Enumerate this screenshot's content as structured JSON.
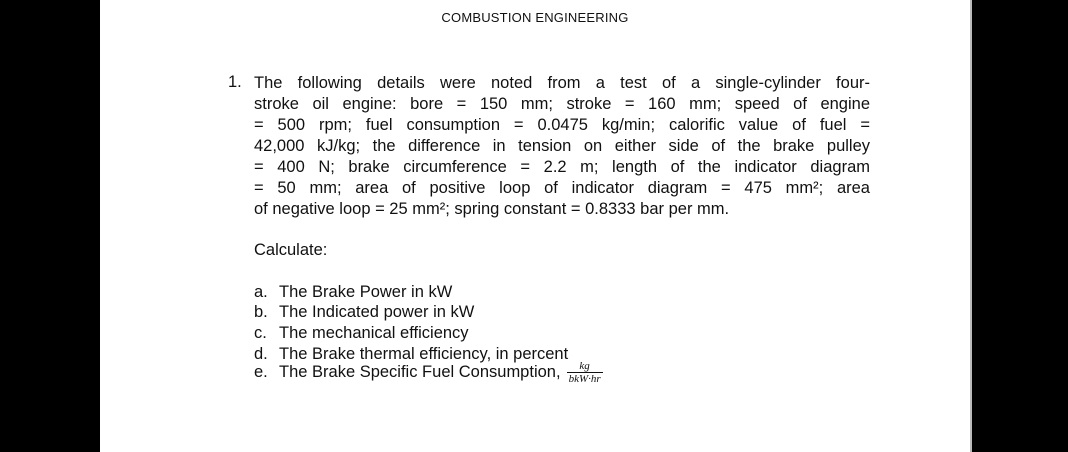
{
  "header": {
    "title": "COMBUSTION ENGINEERING"
  },
  "problem": {
    "number": "1.",
    "lines": [
      "The following details were noted from a test of a single-cylinder four-",
      "stroke oil engine: bore = 150 mm; stroke = 160 mm; speed of engine",
      "= 500 rpm; fuel consumption = 0.0475 kg/min; calorific value of fuel =",
      "42,000 kJ/kg; the difference in tension on either side of the brake pulley",
      "= 400 N; brake circumference = 2.2 m; length of the indicator diagram",
      "= 50 mm; area of positive loop of indicator diagram = 475 mm²; area",
      "of negative loop = 25 mm²; spring constant = 0.8333 bar per mm."
    ],
    "prompt": "Calculate:",
    "items": [
      {
        "label": "a.",
        "text": "The Brake Power in kW"
      },
      {
        "label": "b.",
        "text": "The Indicated power in kW"
      },
      {
        "label": "c.",
        "text": "The mechanical efficiency"
      },
      {
        "label": "d.",
        "text": "The Brake thermal efficiency, in percent"
      },
      {
        "label": "e.",
        "text": "The Brake Specific Fuel Consumption,",
        "numerator": "kg",
        "denominator": "bkW·hr"
      }
    ]
  }
}
